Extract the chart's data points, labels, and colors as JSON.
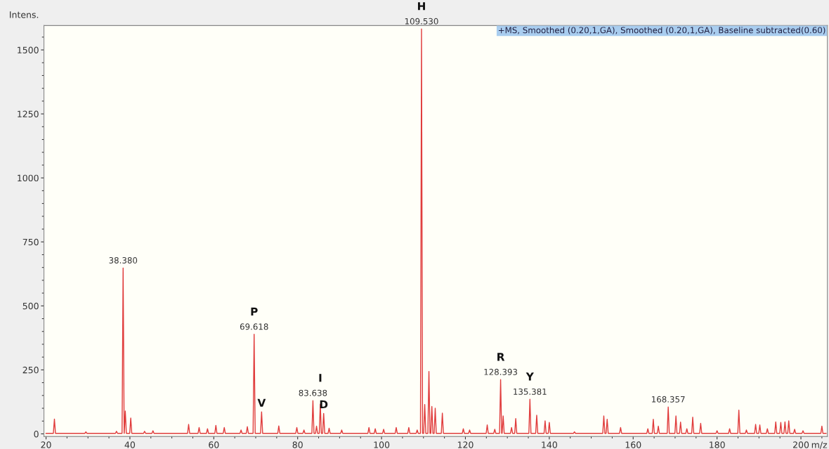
{
  "chart_data": {
    "type": "line",
    "ylabel": "Intens.",
    "xlabel": "m/z",
    "series": [
      {
        "color": "#e03c3c",
        "x": [
          20.0,
          21.75,
          22.0,
          22.25,
          29.25,
          29.5,
          29.75,
          36.55,
          36.8,
          37.05,
          38.13,
          38.38,
          38.63,
          38.65,
          38.9,
          39.15,
          39.95,
          40.2,
          40.45,
          43.25,
          43.5,
          43.75,
          45.25,
          45.5,
          45.75,
          53.75,
          54.0,
          54.25,
          56.25,
          56.5,
          56.75,
          58.25,
          58.5,
          58.75,
          60.25,
          60.5,
          60.75,
          62.25,
          62.5,
          62.75,
          66.25,
          66.5,
          66.75,
          67.75,
          68.0,
          68.25,
          69.37,
          69.618,
          69.87,
          71.15,
          71.4,
          71.65,
          75.25,
          75.5,
          75.75,
          79.55,
          79.8,
          80.05,
          81.25,
          81.5,
          81.75,
          83.39,
          83.638,
          83.89,
          84.25,
          84.5,
          84.75,
          85.15,
          85.4,
          85.65,
          85.95,
          86.2,
          86.45,
          87.25,
          87.5,
          87.75,
          90.25,
          90.5,
          90.75,
          96.75,
          97.0,
          97.25,
          98.25,
          98.5,
          98.75,
          100.25,
          100.5,
          100.75,
          103.25,
          103.5,
          103.75,
          106.25,
          106.5,
          106.75,
          108.25,
          108.5,
          108.75,
          109.28,
          109.53,
          109.78,
          110.05,
          110.3,
          110.55,
          111.05,
          111.3,
          111.55,
          111.75,
          112.0,
          112.25,
          112.55,
          112.8,
          113.05,
          114.25,
          114.5,
          114.75,
          119.25,
          119.5,
          119.75,
          120.75,
          121.0,
          121.25,
          124.95,
          125.2,
          125.45,
          126.75,
          127.0,
          127.25,
          128.14,
          128.393,
          128.64,
          128.75,
          129.0,
          129.25,
          130.75,
          131.0,
          131.25,
          131.75,
          132.0,
          132.25,
          135.13,
          135.381,
          135.63,
          136.75,
          137.0,
          137.25,
          138.75,
          139.0,
          139.25,
          139.75,
          140.0,
          140.25,
          145.75,
          146.0,
          146.25,
          152.75,
          153.0,
          153.25,
          153.55,
          153.8,
          154.05,
          156.75,
          157.0,
          157.25,
          163.25,
          163.5,
          163.75,
          164.55,
          164.8,
          165.05,
          165.75,
          166.0,
          166.25,
          168.11,
          168.357,
          168.61,
          169.95,
          170.2,
          170.45,
          171.05,
          171.3,
          171.55,
          172.55,
          172.8,
          173.05,
          173.95,
          174.2,
          174.45,
          175.85,
          176.1,
          176.35,
          179.75,
          180.0,
          180.25,
          182.75,
          183.0,
          183.25,
          184.95,
          185.2,
          185.45,
          186.75,
          187.0,
          187.25,
          188.95,
          189.2,
          189.45,
          189.95,
          190.2,
          190.45,
          191.75,
          192.0,
          192.25,
          193.75,
          194.0,
          194.25,
          194.95,
          195.2,
          195.45,
          195.95,
          196.2,
          196.45,
          196.85,
          197.1,
          197.35,
          198.25,
          198.5,
          198.75,
          200.25,
          200.5,
          200.75,
          204.75,
          205.0,
          205.25,
          206.0
        ],
        "values": [
          2,
          2,
          58,
          2,
          2,
          8,
          2,
          2,
          10,
          2,
          2,
          648,
          2,
          2,
          89,
          2,
          2,
          62,
          2,
          2,
          10,
          2,
          2,
          12,
          2,
          2,
          37,
          2,
          2,
          25,
          2,
          2,
          20,
          2,
          2,
          33,
          2,
          2,
          25,
          2,
          2,
          15,
          2,
          2,
          28,
          2,
          2,
          389,
          2,
          2,
          86,
          2,
          2,
          31,
          2,
          2,
          25,
          2,
          2,
          15,
          2,
          2,
          130,
          2,
          2,
          30,
          2,
          2,
          116,
          2,
          2,
          80,
          2,
          2,
          22,
          2,
          2,
          15,
          2,
          2,
          25,
          2,
          2,
          20,
          2,
          2,
          18,
          2,
          2,
          25,
          2,
          2,
          25,
          2,
          2,
          15,
          2,
          2,
          1582,
          2,
          2,
          115,
          2,
          2,
          244,
          2,
          2,
          107,
          2,
          2,
          100,
          2,
          2,
          81,
          2,
          2,
          20,
          2,
          2,
          15,
          2,
          2,
          35,
          2,
          2,
          18,
          2,
          2,
          212,
          2,
          2,
          70,
          2,
          2,
          25,
          2,
          2,
          60,
          2,
          2,
          135,
          2,
          2,
          73,
          2,
          2,
          51,
          2,
          2,
          45,
          2,
          2,
          8,
          2,
          2,
          70,
          2,
          2,
          57,
          2,
          2,
          25,
          2,
          2,
          20,
          2,
          2,
          57,
          2,
          2,
          30,
          2,
          2,
          105,
          2,
          2,
          70,
          2,
          2,
          46,
          2,
          2,
          20,
          2,
          2,
          65,
          2,
          2,
          41,
          2,
          2,
          12,
          2,
          2,
          20,
          2,
          2,
          93,
          2,
          2,
          15,
          2,
          2,
          37,
          2,
          2,
          35,
          2,
          2,
          20,
          2,
          2,
          47,
          2,
          2,
          45,
          2,
          2,
          47,
          2,
          2,
          51,
          2,
          2,
          18,
          2,
          2,
          12,
          2,
          2,
          30,
          2,
          2
        ]
      }
    ],
    "xlim": [
      19.5,
      206.3
    ],
    "ylim": [
      -10,
      1595
    ],
    "xticks": [
      20,
      40,
      60,
      80,
      100,
      120,
      140,
      160,
      180,
      200
    ],
    "yticks": [
      0,
      250,
      500,
      750,
      1000,
      1250,
      1500
    ],
    "grid": false,
    "legend": false,
    "annotations": [
      "+MS, Smoothed (0.20,1,GA), Smoothed (0.20,1,GA), Baseline subtracted(0.60)",
      {
        "text": "38.380",
        "x": 38.38,
        "y": 648
      },
      {
        "text": "69.618",
        "x": 69.618,
        "y": 389
      },
      {
        "text": "83.638",
        "x": 83.638,
        "y": 130
      },
      {
        "text": "109.530",
        "x": 109.53,
        "y": 1582
      },
      {
        "text": "128.393",
        "x": 128.393,
        "y": 212
      },
      {
        "text": "135.381",
        "x": 135.381,
        "y": 135
      },
      {
        "text": "168.357",
        "x": 168.357,
        "y": 105
      },
      {
        "text": "H",
        "x": 109.53,
        "y": 1582
      },
      {
        "text": "P",
        "x": 69.618,
        "y": 389
      },
      {
        "text": "V",
        "x": 71.4,
        "y": 86
      },
      {
        "text": "I",
        "x": 85.4,
        "y": 116
      },
      {
        "text": "D",
        "x": 86.2,
        "y": 80
      },
      {
        "text": "R",
        "x": 128.393,
        "y": 212
      },
      {
        "text": "Y",
        "x": 135.381,
        "y": 135
      }
    ]
  }
}
